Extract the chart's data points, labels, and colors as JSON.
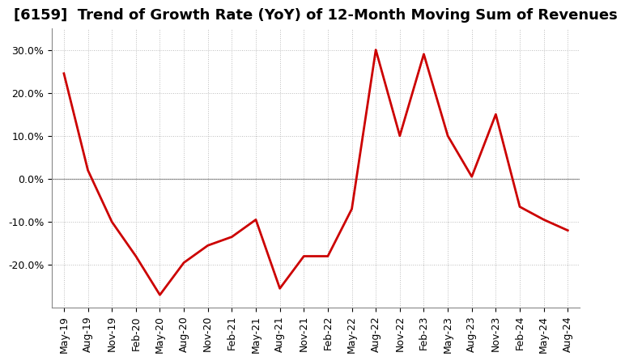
{
  "title": "[6159]  Trend of Growth Rate (YoY) of 12-Month Moving Sum of Revenues",
  "line_color": "#cc0000",
  "background_color": "#ffffff",
  "plot_background": "#ffffff",
  "grid_color": "#bbbbbb",
  "ylim": [
    -30,
    35
  ],
  "yticks": [
    -20,
    -10,
    0,
    10,
    20,
    30
  ],
  "ytick_labels": [
    "-20.0%",
    "-10.0%",
    "0.0%",
    "10.0%",
    "20.0%",
    "30.0%"
  ],
  "x_labels": [
    "May-19",
    "Aug-19",
    "Nov-19",
    "Feb-20",
    "May-20",
    "Aug-20",
    "Nov-20",
    "Feb-21",
    "May-21",
    "Aug-21",
    "Nov-21",
    "Feb-22",
    "May-22",
    "Aug-22",
    "Nov-22",
    "Feb-23",
    "May-23",
    "Aug-23",
    "Nov-23",
    "Feb-24",
    "May-24",
    "Aug-24"
  ],
  "x_values": [
    0,
    3,
    6,
    9,
    12,
    15,
    18,
    21,
    24,
    27,
    30,
    33,
    36,
    39,
    42,
    45,
    48,
    51,
    54,
    57,
    60,
    63
  ],
  "y_values": [
    24.5,
    2.0,
    -10.0,
    -18.0,
    -27.0,
    -19.5,
    -15.5,
    -13.5,
    -9.5,
    -25.5,
    -18.0,
    -18.0,
    -7.0,
    30.0,
    10.0,
    29.0,
    10.0,
    0.5,
    15.0,
    -6.5,
    -9.5,
    -12.0
  ],
  "linewidth": 2.0,
  "title_fontsize": 13,
  "tick_fontsize": 9
}
